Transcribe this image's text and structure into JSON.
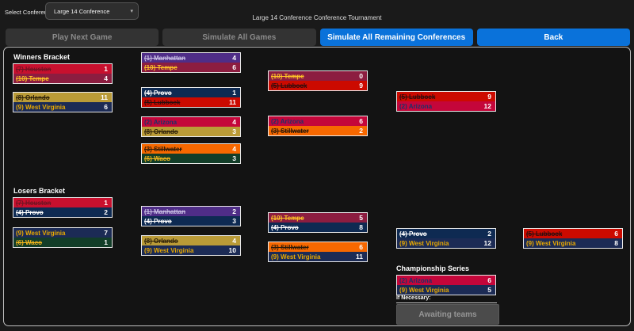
{
  "header": {
    "select_conference_label": "Select Conference:",
    "conference_value": "Large 14 Conference",
    "dropdown_caret": "▾",
    "title": "Large 14 Conference Conference Tournament"
  },
  "toolbar": {
    "buttons": [
      {
        "label": "Play Next Game",
        "enabled": false
      },
      {
        "label": "Simulate All Games",
        "enabled": false
      },
      {
        "label": "Simulate All Remaining Conferences",
        "enabled": true
      },
      {
        "label": "Back",
        "enabled": true
      }
    ]
  },
  "colors": {
    "accent_blue": "#0A72DA",
    "disabled_button_bg": "#333333",
    "disabled_button_text": "#8A8A8A",
    "panel_border": "#BFBFBF",
    "matchup_border": "#E8E8E8",
    "score_text": "#FFFFFF"
  },
  "teams": {
    "houston": {
      "bg": "#C8102E",
      "fg": "#6E1423"
    },
    "tempe": {
      "bg": "#8C1D40",
      "fg": "#FFC627"
    },
    "orlando": {
      "bg": "#BA9B37",
      "fg": "#2A1E08"
    },
    "west_virginia": {
      "bg": "#1C2B55",
      "fg": "#EAAA00"
    },
    "manhattan": {
      "bg": "#4F2D87",
      "fg": "#C9BFE4"
    },
    "provo": {
      "bg": "#0E2A52",
      "fg": "#FFFFFF"
    },
    "lubbock": {
      "bg": "#CC0A00",
      "fg": "#2B0E0E"
    },
    "arizona": {
      "bg": "#C4063A",
      "fg": "#1C3268"
    },
    "stillwater": {
      "bg": "#F76800",
      "fg": "#26180A"
    },
    "waco": {
      "bg": "#123D28",
      "fg": "#F2B51C"
    }
  },
  "winners_bracket": {
    "label": "Winners Bracket",
    "matchups": [
      {
        "id": "winners-r1-m1",
        "pos": "pos-w1",
        "rows": [
          {
            "team_key": "houston",
            "name": "(7) Houston",
            "score": "1",
            "struck": true
          },
          {
            "team_key": "tempe",
            "name": "(10) Tempe",
            "score": "4",
            "struck": true
          }
        ]
      },
      {
        "id": "winners-r1-m2",
        "pos": "pos-w2",
        "rows": [
          {
            "team_key": "orlando",
            "name": "(8) Orlando",
            "score": "11",
            "struck": true
          },
          {
            "team_key": "west_virginia",
            "name": "(9) West Virginia",
            "score": "6",
            "struck": false
          }
        ]
      },
      {
        "id": "winners-r2-m1",
        "pos": "pos-w3",
        "rows": [
          {
            "team_key": "manhattan",
            "name": "(1) Manhattan",
            "score": "4",
            "struck": true
          },
          {
            "team_key": "tempe",
            "name": "(10) Tempe",
            "score": "6",
            "struck": true
          }
        ]
      },
      {
        "id": "winners-r2-m2",
        "pos": "pos-w4",
        "rows": [
          {
            "team_key": "provo",
            "name": "(4) Provo",
            "score": "1",
            "struck": true
          },
          {
            "team_key": "lubbock",
            "name": "(5) Lubbock",
            "score": "11",
            "struck": true
          }
        ]
      },
      {
        "id": "winners-r2-m3",
        "pos": "pos-w5",
        "rows": [
          {
            "team_key": "arizona",
            "name": "(2) Arizona",
            "score": "4",
            "struck": false
          },
          {
            "team_key": "orlando",
            "name": "(8) Orlando",
            "score": "3",
            "struck": true
          }
        ]
      },
      {
        "id": "winners-r2-m4",
        "pos": "pos-w6",
        "rows": [
          {
            "team_key": "stillwater",
            "name": "(3) Stillwater",
            "score": "4",
            "struck": true
          },
          {
            "team_key": "waco",
            "name": "(6) Waco",
            "score": "3",
            "struck": true
          }
        ]
      },
      {
        "id": "winners-r3-m1",
        "pos": "pos-w7",
        "rows": [
          {
            "team_key": "tempe",
            "name": "(10) Tempe",
            "score": "0",
            "struck": true
          },
          {
            "team_key": "lubbock",
            "name": "(5) Lubbock",
            "score": "9",
            "struck": true
          }
        ]
      },
      {
        "id": "winners-r3-m2",
        "pos": "pos-w8",
        "rows": [
          {
            "team_key": "arizona",
            "name": "(2) Arizona",
            "score": "6",
            "struck": false
          },
          {
            "team_key": "stillwater",
            "name": "(3) Stillwater",
            "score": "2",
            "struck": true
          }
        ]
      },
      {
        "id": "winners-final",
        "pos": "pos-w9",
        "rows": [
          {
            "team_key": "lubbock",
            "name": "(5) Lubbock",
            "score": "9",
            "struck": true
          },
          {
            "team_key": "arizona",
            "name": "(2) Arizona",
            "score": "12",
            "struck": false
          }
        ]
      }
    ]
  },
  "losers_bracket": {
    "label": "Losers Bracket",
    "matchups": [
      {
        "id": "losers-r1-m1",
        "pos": "pos-l1",
        "rows": [
          {
            "team_key": "houston",
            "name": "(7) Houston",
            "score": "1",
            "struck": true
          },
          {
            "team_key": "provo",
            "name": "(4) Provo",
            "score": "2",
            "struck": true
          }
        ]
      },
      {
        "id": "losers-r1-m2",
        "pos": "pos-l2",
        "rows": [
          {
            "team_key": "west_virginia",
            "name": "(9) West Virginia",
            "score": "7",
            "struck": false
          },
          {
            "team_key": "waco",
            "name": "(6) Waco",
            "score": "1",
            "struck": true
          }
        ]
      },
      {
        "id": "losers-r2-m1",
        "pos": "pos-l3",
        "rows": [
          {
            "team_key": "manhattan",
            "name": "(1) Manhattan",
            "score": "2",
            "struck": true
          },
          {
            "team_key": "provo",
            "name": "(4) Provo",
            "score": "3",
            "struck": true
          }
        ]
      },
      {
        "id": "losers-r2-m2",
        "pos": "pos-l4",
        "rows": [
          {
            "team_key": "orlando",
            "name": "(8) Orlando",
            "score": "4",
            "struck": true
          },
          {
            "team_key": "west_virginia",
            "name": "(9) West Virginia",
            "score": "10",
            "struck": false
          }
        ]
      },
      {
        "id": "losers-r3-m1",
        "pos": "pos-l5",
        "rows": [
          {
            "team_key": "tempe",
            "name": "(10) Tempe",
            "score": "5",
            "struck": true
          },
          {
            "team_key": "provo",
            "name": "(4) Provo",
            "score": "8",
            "struck": true
          }
        ]
      },
      {
        "id": "losers-r3-m2",
        "pos": "pos-l6",
        "rows": [
          {
            "team_key": "stillwater",
            "name": "(3) Stillwater",
            "score": "6",
            "struck": true
          },
          {
            "team_key": "west_virginia",
            "name": "(9) West Virginia",
            "score": "11",
            "struck": false
          }
        ]
      },
      {
        "id": "losers-r4",
        "pos": "pos-l7",
        "rows": [
          {
            "team_key": "provo",
            "name": "(4) Provo",
            "score": "2",
            "struck": true
          },
          {
            "team_key": "west_virginia",
            "name": "(9) West Virginia",
            "score": "12",
            "struck": false
          }
        ]
      },
      {
        "id": "losers-final",
        "pos": "pos-l8",
        "rows": [
          {
            "team_key": "lubbock",
            "name": "(5) Lubbock",
            "score": "6",
            "struck": true
          },
          {
            "team_key": "west_virginia",
            "name": "(9) West Virginia",
            "score": "8",
            "struck": false
          }
        ]
      }
    ]
  },
  "championship": {
    "label": "Championship Series",
    "matchup": {
      "id": "championship-series",
      "pos": "pos-champ",
      "rows": [
        {
          "team_key": "arizona",
          "name": "(2) Arizona",
          "score": "6",
          "struck": false
        },
        {
          "team_key": "west_virginia",
          "name": "(9) West Virginia",
          "score": "5",
          "struck": false
        }
      ]
    },
    "if_necessary_label": "If Necessary:",
    "awaiting_label": "Awaiting teams"
  }
}
